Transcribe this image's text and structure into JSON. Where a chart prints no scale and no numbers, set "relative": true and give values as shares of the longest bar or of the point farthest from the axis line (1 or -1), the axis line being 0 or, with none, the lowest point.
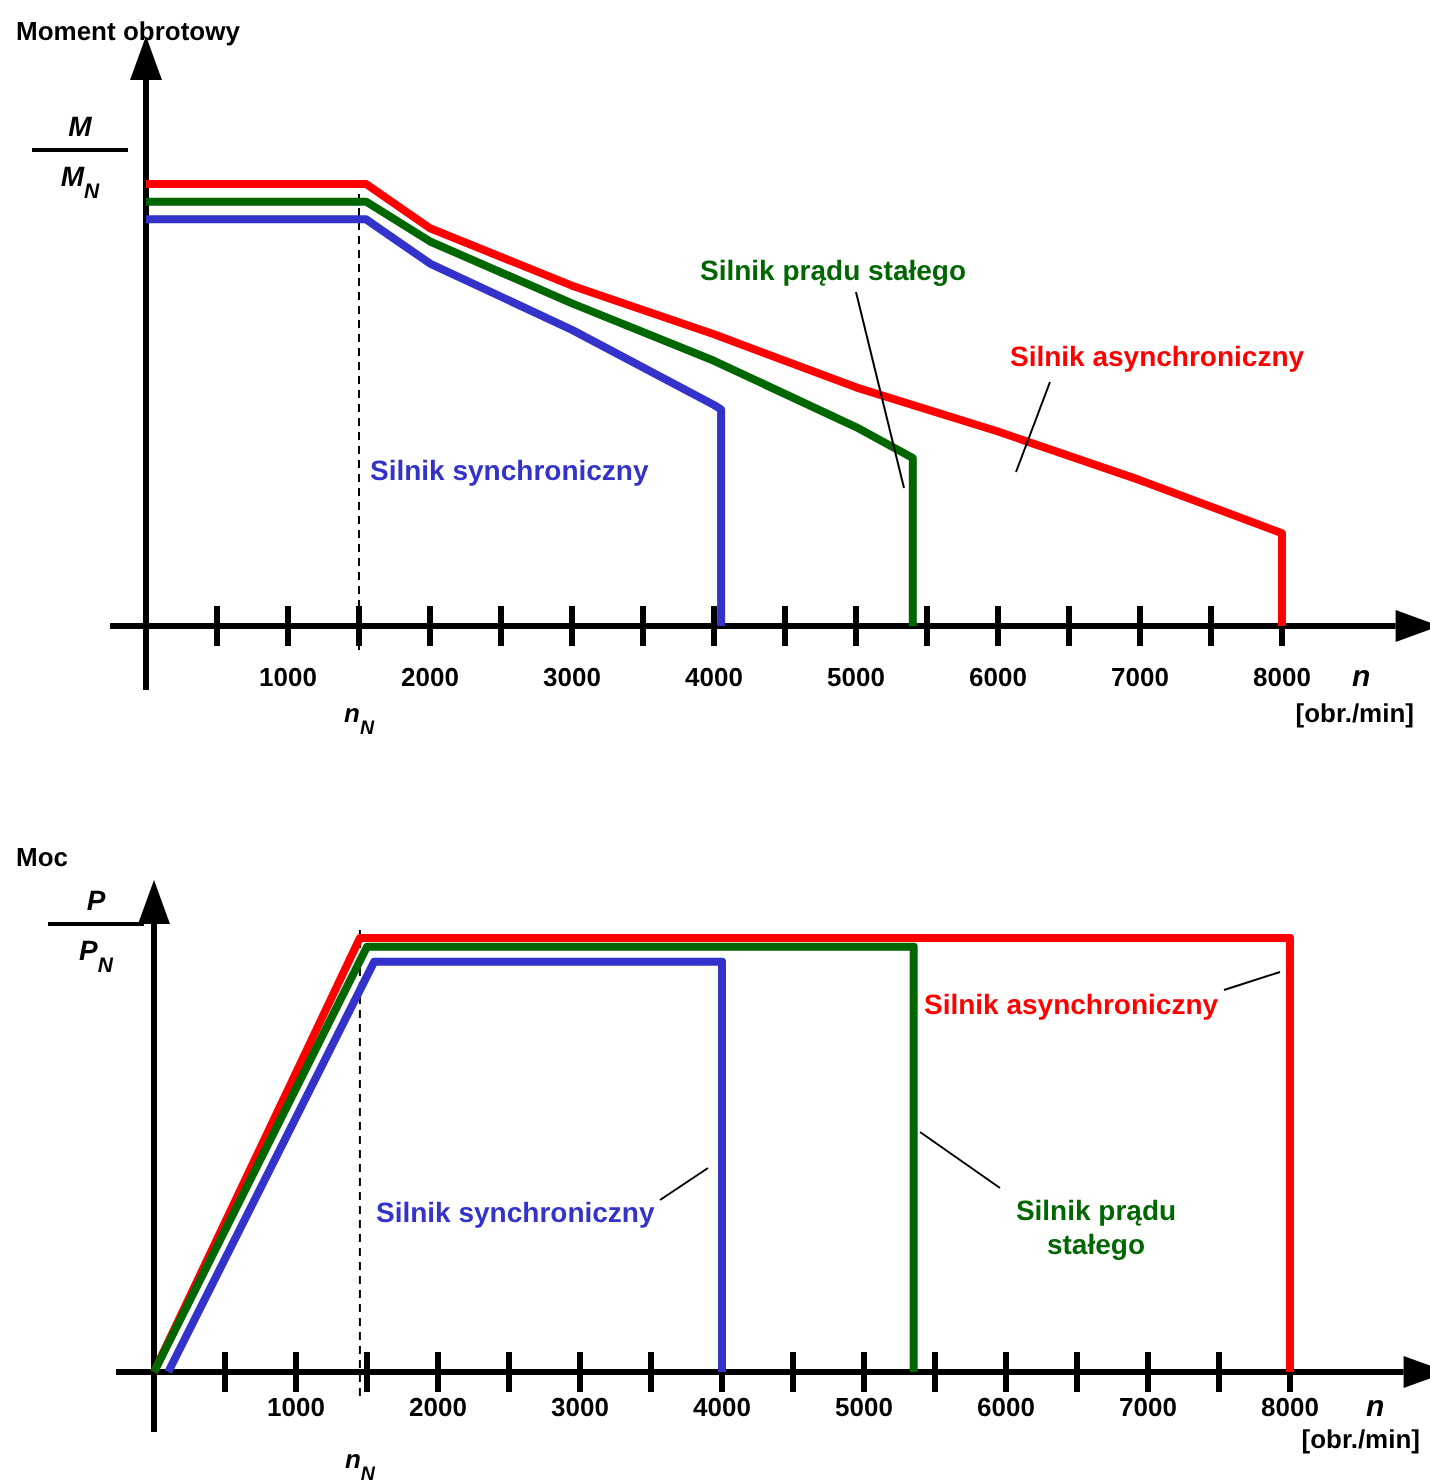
{
  "chart_data": [
    {
      "type": "line",
      "relative": true,
      "ylabel": "Moment obrotowy",
      "xlabel": "n",
      "legend": false,
      "marker": "none",
      "xlim": [
        0,
        8800
      ],
      "xticks": [
        {
          "value": 500,
          "label": null
        },
        1000,
        {
          "value": 1500,
          "label": null
        },
        2000,
        {
          "value": 2500,
          "label": null
        },
        3000,
        {
          "value": 3500,
          "label": null
        },
        4000,
        {
          "value": 4500,
          "label": null
        },
        5000,
        {
          "value": 5500,
          "label": null
        },
        6000,
        {
          "value": 6500,
          "label": null
        },
        7000,
        {
          "value": 7500,
          "label": null
        },
        8000
      ],
      "ref_lines": [
        {
          "axis": "x",
          "value": 1500,
          "label": "n$_{N}$",
          "line_style": "dashed",
          "color": "#000000"
        }
      ],
      "annotations": [
        "M",
        "M$_{N}$",
        "[obr./min]"
      ],
      "series": [
        {
          "name": "Silnik asynchroniczny",
          "color": "#ff0000",
          "x": [
            0,
            1550,
            2000,
            3000,
            4000,
            5000,
            6000,
            7000,
            8000,
            8000
          ],
          "values": [
            1,
            1,
            0.9,
            0.77,
            0.66,
            0.54,
            0.44,
            0.33,
            0.21,
            0
          ]
        },
        {
          "name": "Silnik prądu stałego",
          "color": "#006600",
          "x": [
            0,
            1550,
            2000,
            3000,
            4000,
            5000,
            5400,
            5400
          ],
          "values": [
            0.96,
            0.96,
            0.87,
            0.73,
            0.6,
            0.45,
            0.38,
            0
          ]
        },
        {
          "name": "Silnik synchroniczny",
          "color": "#3333cc",
          "x": [
            0,
            1550,
            2000,
            3000,
            4000,
            4050,
            4050
          ],
          "values": [
            0.92,
            0.92,
            0.82,
            0.67,
            0.5,
            0.49,
            0
          ]
        }
      ]
    },
    {
      "type": "line",
      "relative": true,
      "ylabel": "Moc",
      "xlabel": "n",
      "legend": false,
      "marker": "none",
      "xlim": [
        0,
        8800
      ],
      "xticks": [
        {
          "value": 500,
          "label": null
        },
        1000,
        {
          "value": 1500,
          "label": null
        },
        2000,
        {
          "value": 2500,
          "label": null
        },
        3000,
        {
          "value": 3500,
          "label": null
        },
        4000,
        {
          "value": 4500,
          "label": null
        },
        5000,
        {
          "value": 5500,
          "label": null
        },
        6000,
        {
          "value": 6500,
          "label": null
        },
        7000,
        {
          "value": 7500,
          "label": null
        },
        8000
      ],
      "ref_lines": [
        {
          "axis": "x",
          "value": 1450,
          "label": "n$_{N}$",
          "line_style": "dashed",
          "color": "#000000"
        }
      ],
      "annotations": [
        "P",
        "P$_{N}$",
        "[obr./min]"
      ],
      "series": [
        {
          "name": "Silnik asynchroniczny",
          "color": "#ff0000",
          "x": [
            0,
            1450,
            8000,
            8000
          ],
          "values": [
            0,
            1,
            1,
            0
          ]
        },
        {
          "name": "Silnik prądu stałego",
          "color": "#006600",
          "x": [
            0,
            1500,
            5350,
            5350
          ],
          "values": [
            0,
            0.98,
            0.98,
            0
          ]
        },
        {
          "name": "Silnik synchroniczny",
          "color": "#3333cc",
          "x": [
            100,
            1550,
            4000,
            4000
          ],
          "values": [
            0,
            0.945,
            0.945,
            0
          ]
        }
      ]
    }
  ]
}
